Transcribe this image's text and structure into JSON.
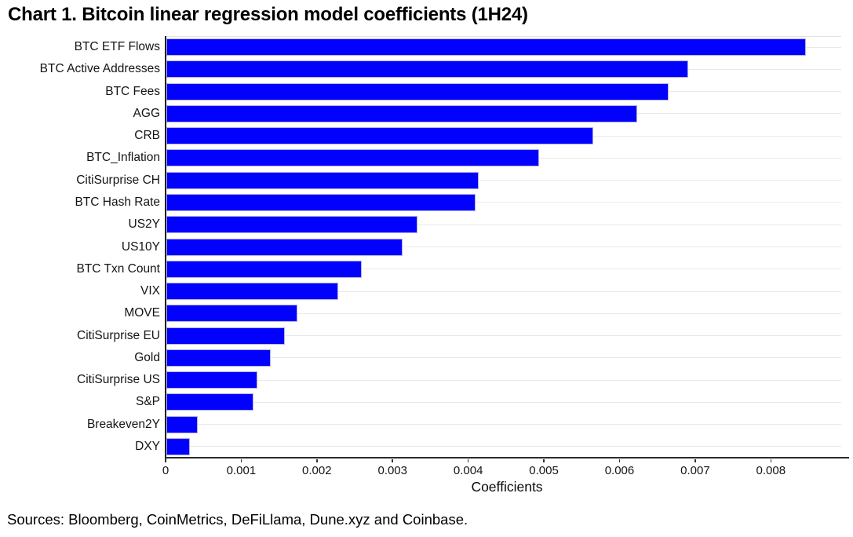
{
  "title": "Chart 1. Bitcoin linear regression model coefficients (1H24)",
  "footer": {
    "sources": "Sources: Bloomberg, CoinMetrics, DeFiLlama, Dune.xyz and Coinbase."
  },
  "chart_data": {
    "type": "bar",
    "orientation": "horizontal",
    "title": "Chart 1. Bitcoin linear regression model coefficients (1H24)",
    "xlabel": "Coefficients",
    "ylabel": "",
    "categories": [
      "BTC ETF Flows",
      "BTC Active Addresses",
      "BTC Fees",
      "AGG",
      "CRB",
      "BTC_Inflation",
      "CitiSurprise CH",
      "BTC Hash Rate",
      "US2Y",
      "US10Y",
      "BTC Txn Count",
      "VIX",
      "MOVE",
      "CitiSurprise EU",
      "Gold",
      "CitiSurprise US",
      "S&P",
      "Breakeven2Y",
      "DXY"
    ],
    "values": [
      0.00845,
      0.0069,
      0.00664,
      0.00622,
      0.00564,
      0.00493,
      0.00413,
      0.00409,
      0.00332,
      0.00312,
      0.00258,
      0.00227,
      0.00173,
      0.00157,
      0.00138,
      0.0012,
      0.00115,
      0.00041,
      0.00031
    ],
    "xlim": [
      0,
      0.00893
    ],
    "xticks": [
      0,
      0.001,
      0.002,
      0.003,
      0.004,
      0.005,
      0.006,
      0.007,
      0.008
    ],
    "xtick_labels": [
      "0",
      "0.001",
      "0.002",
      "0.003",
      "0.004",
      "0.005",
      "0.006",
      "0.007",
      "0.008"
    ],
    "grid": "horizontal-row-lines",
    "legend_position": "none",
    "bar_color": "#0101fd",
    "bar_edge_color": "#b4b2e8",
    "gridline_color": "#e9e9e9",
    "axis_color": "#1f1f1f"
  }
}
